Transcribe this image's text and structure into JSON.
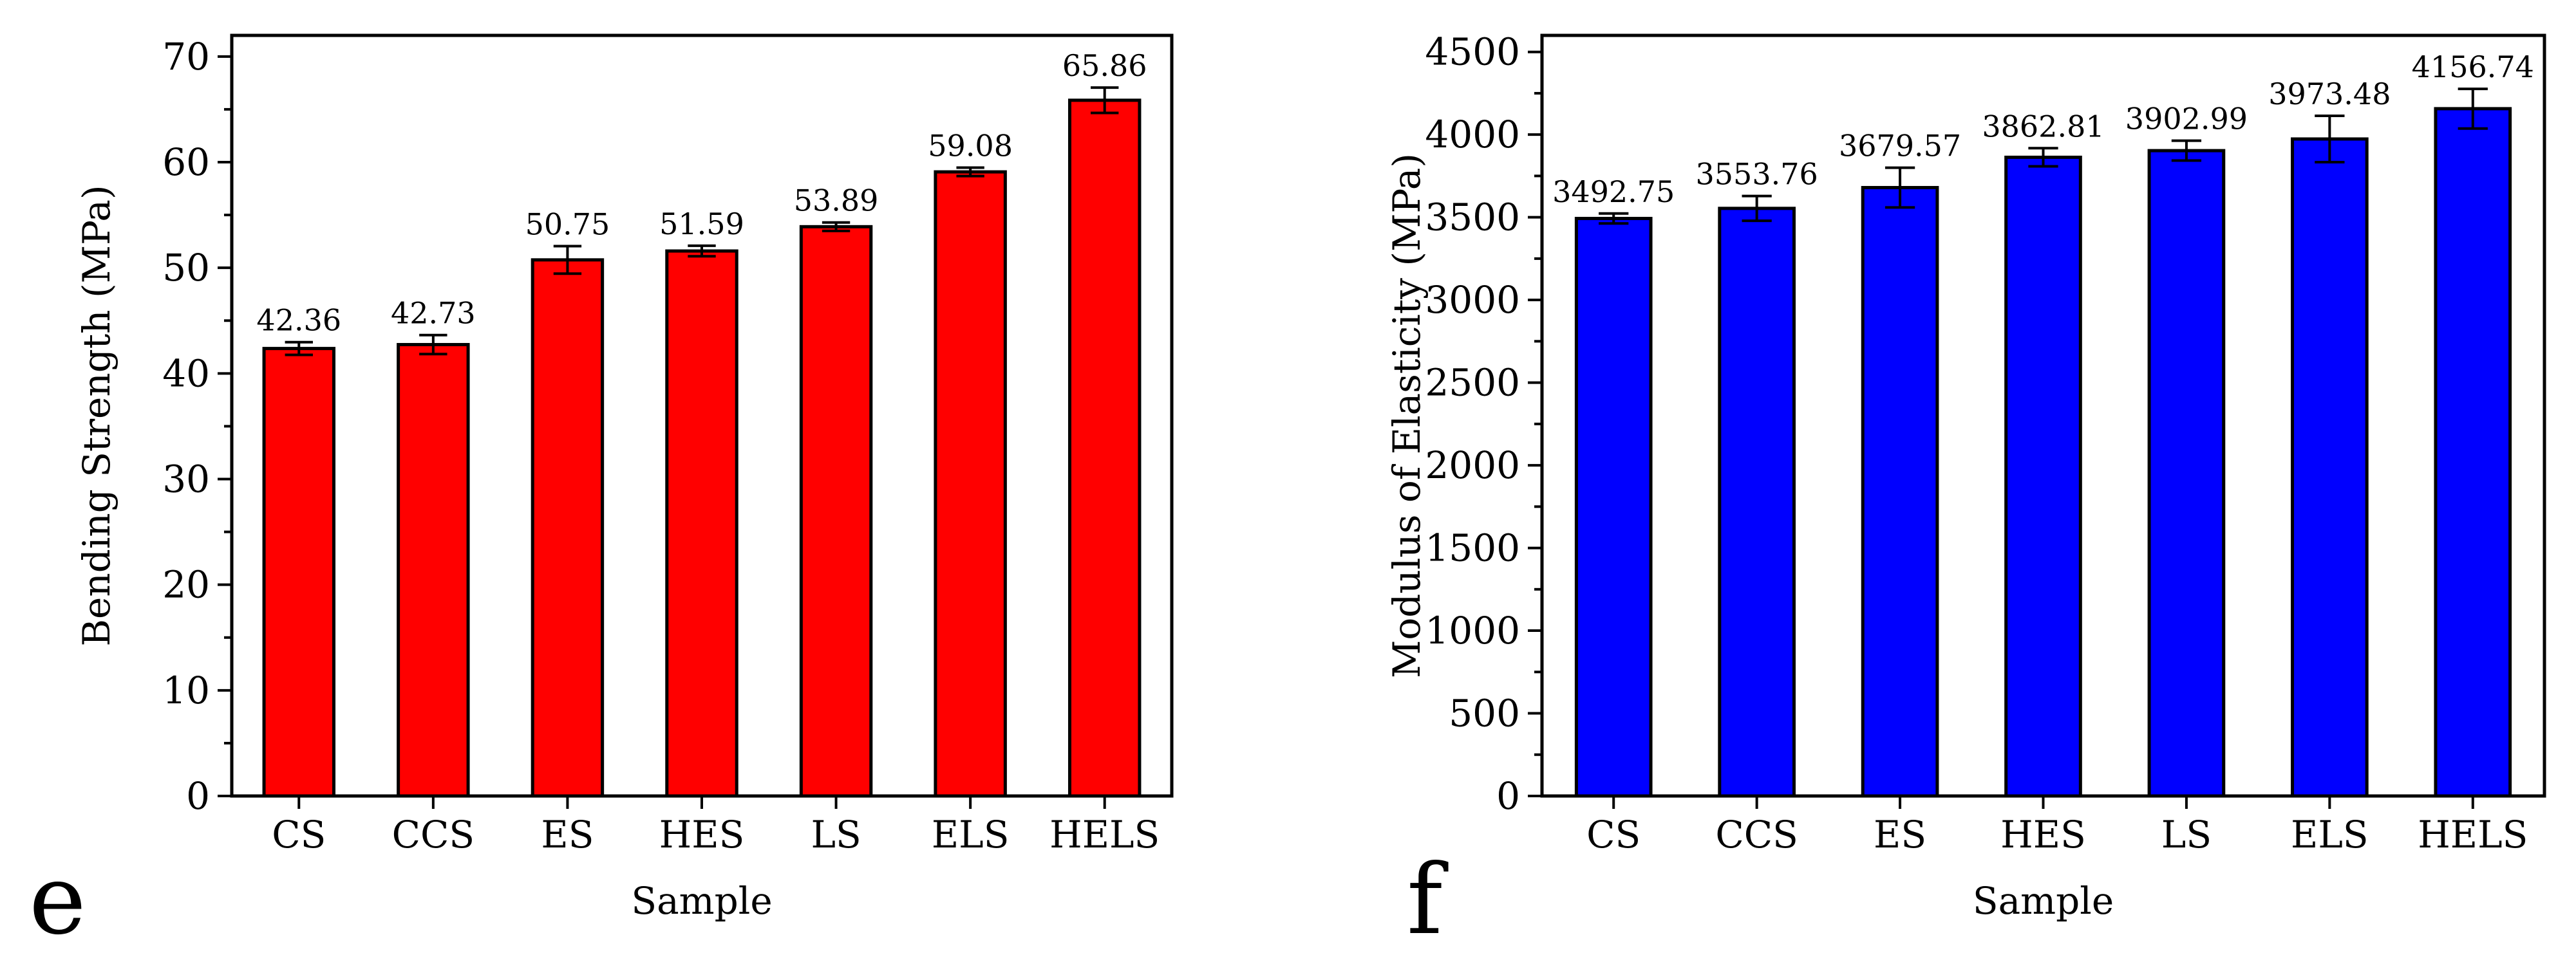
{
  "chart_data": [
    {
      "type": "bar",
      "panel_label": "e",
      "categories": [
        "CS",
        "CCS",
        "ES",
        "HES",
        "LS",
        "ELS",
        "HELS"
      ],
      "values": [
        42.36,
        42.73,
        50.75,
        51.59,
        53.89,
        59.08,
        65.86
      ],
      "errors": [
        0.6,
        0.9,
        1.3,
        0.5,
        0.4,
        0.4,
        1.2
      ],
      "value_labels": [
        "42.36",
        "42.73",
        "50.75",
        "51.59",
        "53.89",
        "59.08",
        "65.86"
      ],
      "xlabel": "Sample",
      "ylabel": "Bending Strength (MPa)",
      "ylim": [
        0,
        72
      ],
      "yticks": [
        0,
        10,
        20,
        30,
        40,
        50,
        60,
        70
      ],
      "ytick_labels": [
        "0",
        "10",
        "20",
        "30",
        "40",
        "50",
        "60",
        "70"
      ],
      "bar_color": "#ff0000",
      "grid": false,
      "legend": "none"
    },
    {
      "type": "bar",
      "panel_label": "f",
      "categories": [
        "CS",
        "CCS",
        "ES",
        "HES",
        "LS",
        "ELS",
        "HELS"
      ],
      "values": [
        3492.75,
        3553.76,
        3679.57,
        3862.81,
        3902.99,
        3973.48,
        4156.74
      ],
      "errors": [
        30,
        75,
        120,
        55,
        60,
        140,
        120
      ],
      "value_labels": [
        "3492.75",
        "3553.76",
        "3679.57",
        "3862.81",
        "3902.99",
        "3973.48",
        "4156.74"
      ],
      "xlabel": "Sample",
      "ylabel": "Modulus of Elasticity (MPa)",
      "ylim": [
        0,
        4600
      ],
      "yticks": [
        0,
        500,
        1000,
        1500,
        2000,
        2500,
        3000,
        3500,
        4000,
        4500
      ],
      "ytick_labels": [
        "0",
        "500",
        "1000",
        "1500",
        "2000",
        "2500",
        "3000",
        "3500",
        "4000",
        "4500"
      ],
      "bar_color": "#0000ff",
      "grid": false,
      "legend": "none"
    }
  ]
}
